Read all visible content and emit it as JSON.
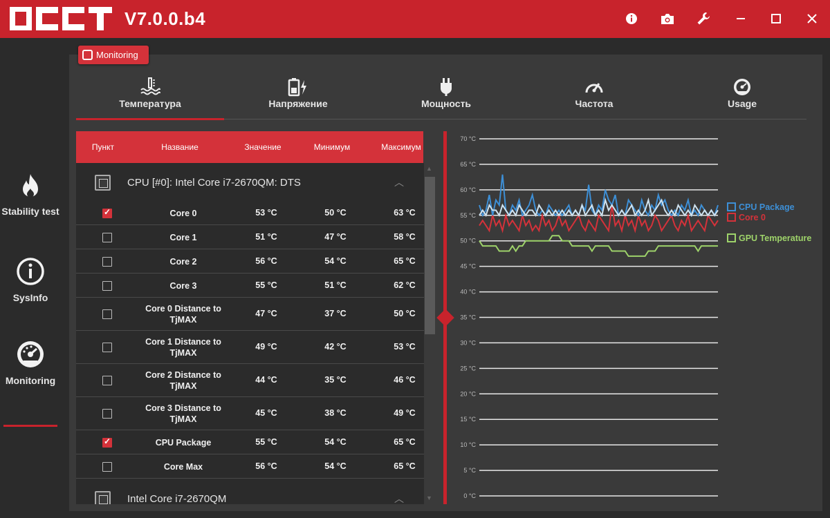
{
  "app": {
    "logo_text": "OCCT",
    "version": "V7.0.0.b4"
  },
  "titlebar_buttons": [
    "info-icon",
    "camera-icon",
    "wrench-icon",
    "minimize-icon",
    "maximize-icon",
    "close-icon"
  ],
  "sidebar": {
    "items": [
      {
        "label": "Stability test",
        "icon": "flame-icon"
      },
      {
        "label": "SysInfo",
        "icon": "info-icon"
      },
      {
        "label": "Monitoring",
        "icon": "gauge-icon",
        "active": true
      }
    ]
  },
  "badge": {
    "label": "Monitoring"
  },
  "tabs": [
    {
      "label": "Температура",
      "icon": "thermometer-icon",
      "active": true
    },
    {
      "label": "Напряжение",
      "icon": "battery-icon"
    },
    {
      "label": "Мощность",
      "icon": "plug-icon"
    },
    {
      "label": "Частота",
      "icon": "speedometer-icon"
    },
    {
      "label": "Usage",
      "icon": "gauge-icon"
    }
  ],
  "table": {
    "headers": [
      "Пункт",
      "Название",
      "Значение",
      "Минимум",
      "Максимум"
    ],
    "group1": "CPU [#0]: Intel Core i7-2670QM: DTS",
    "rows": [
      {
        "name": "Core 0",
        "value": "53 °C",
        "min": "50 °C",
        "max": "63 °C",
        "checked": true
      },
      {
        "name": "Core 1",
        "value": "51 °C",
        "min": "47 °C",
        "max": "58 °C",
        "checked": false
      },
      {
        "name": "Core 2",
        "value": "56 °C",
        "min": "54 °C",
        "max": "65 °C",
        "checked": false
      },
      {
        "name": "Core 3",
        "value": "55 °C",
        "min": "51 °C",
        "max": "62 °C",
        "checked": false
      },
      {
        "name": "Core 0 Distance to TjMAX",
        "value": "47 °C",
        "min": "37 °C",
        "max": "50 °C",
        "checked": false
      },
      {
        "name": "Core 1 Distance to TjMAX",
        "value": "49 °C",
        "min": "42 °C",
        "max": "53 °C",
        "checked": false
      },
      {
        "name": "Core 2 Distance to TjMAX",
        "value": "44 °C",
        "min": "35 °C",
        "max": "46 °C",
        "checked": false
      },
      {
        "name": "Core 3 Distance to TjMAX",
        "value": "45 °C",
        "min": "38 °C",
        "max": "49 °C",
        "checked": false
      },
      {
        "name": "CPU Package",
        "value": "55 °C",
        "min": "54 °C",
        "max": "65 °C",
        "checked": true
      },
      {
        "name": "Core Max",
        "value": "56 °C",
        "min": "54 °C",
        "max": "65 °C",
        "checked": false
      }
    ],
    "group2": "Intel Core i7-2670QM"
  },
  "chart_data": {
    "type": "line",
    "yticks": [
      "70 °C",
      "65 °C",
      "60 °C",
      "55 °C",
      "50 °C",
      "45 °C",
      "40 °C",
      "35 °C",
      "30 °C",
      "25 °C",
      "20 °C",
      "15 °C",
      "10 °C",
      "5 °C",
      "0 °C"
    ],
    "ylim": [
      0,
      70
    ],
    "grid": true,
    "legend_placement": "right",
    "series": [
      {
        "name": "CPU Package",
        "color": "#3d8fd6",
        "values": [
          57,
          55,
          56,
          59,
          55,
          58,
          57,
          63,
          56,
          55,
          57,
          56,
          58,
          55,
          56,
          57,
          59,
          56,
          55,
          56,
          55,
          57,
          56,
          55,
          56,
          55,
          56,
          57,
          55,
          56,
          55,
          57,
          56,
          61,
          56,
          55,
          57,
          56,
          60,
          58,
          57,
          59,
          55,
          56,
          55,
          58,
          57,
          56,
          55,
          58,
          56,
          55,
          57,
          56,
          59,
          57,
          58,
          56,
          55,
          56,
          55,
          57,
          56,
          58,
          55,
          56,
          55,
          57,
          56,
          55,
          56,
          55,
          57
        ]
      },
      {
        "name": "Core 0",
        "color": "#d4323a",
        "values": [
          53,
          54,
          53,
          52,
          55,
          53,
          54,
          52,
          55,
          53,
          54,
          53,
          52,
          55,
          53,
          54,
          52,
          53,
          52,
          55,
          53,
          54,
          52,
          53,
          55,
          53,
          54,
          52,
          53,
          54,
          55,
          53,
          52,
          54,
          53,
          52,
          55,
          54,
          53,
          52,
          57,
          53,
          54,
          52,
          55,
          53,
          54,
          52,
          55,
          53,
          54,
          52,
          53,
          55,
          54,
          52,
          53,
          54,
          55,
          53,
          52,
          54,
          53,
          55,
          52,
          53,
          54,
          53,
          52,
          55,
          54,
          53,
          54
        ]
      },
      {
        "name": "GPU Temperature",
        "color": "#9ed36a",
        "values": [
          50,
          49,
          49,
          49,
          49,
          49,
          48,
          48,
          48,
          48,
          49,
          48,
          49,
          49,
          50,
          50,
          50,
          50,
          50,
          50,
          50,
          50,
          51,
          51,
          51,
          50,
          50,
          50,
          49,
          49,
          49,
          49,
          49,
          49,
          48,
          49,
          49,
          49,
          49,
          49,
          48,
          48,
          48,
          48,
          48,
          47,
          47,
          47,
          47,
          47,
          47,
          48,
          48,
          48,
          49,
          49,
          49,
          49,
          49,
          49,
          49,
          49,
          49,
          49,
          49,
          49,
          48,
          49,
          49,
          49,
          49,
          49,
          49
        ]
      },
      {
        "name": "",
        "color": "#cfe3f0",
        "values": [
          55,
          56,
          55,
          57,
          56,
          56,
          55,
          57,
          56,
          55,
          56,
          55,
          57,
          56,
          55,
          56,
          56,
          55,
          57,
          56,
          55,
          56,
          55,
          56,
          55,
          56,
          55,
          56,
          55,
          56,
          55,
          57,
          55,
          56,
          57,
          55,
          56,
          55,
          58,
          56,
          57,
          56,
          55,
          56,
          55,
          56,
          57,
          55,
          56,
          55,
          56,
          58,
          55,
          56,
          57,
          58,
          56,
          55,
          56,
          55,
          57,
          56,
          55,
          56,
          55,
          57,
          56,
          55,
          56,
          55,
          56,
          55,
          56
        ]
      }
    ]
  }
}
